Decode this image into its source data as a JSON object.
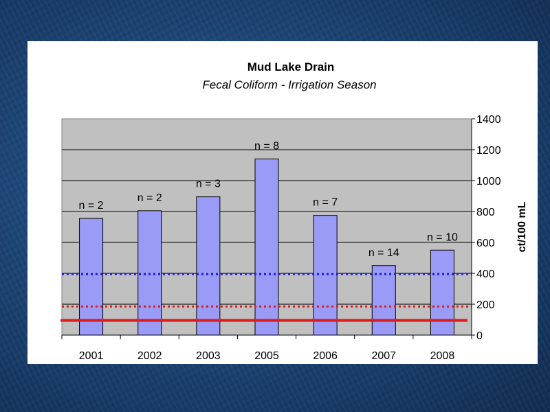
{
  "chart_data": {
    "type": "bar",
    "title": "Mud Lake Drain",
    "subtitle": "Fecal Coliform - Irrigation Season",
    "categories": [
      "2001",
      "2002",
      "2003",
      "2005",
      "2006",
      "2007",
      "2008"
    ],
    "values": [
      755,
      805,
      895,
      1140,
      775,
      450,
      550
    ],
    "sample_labels": [
      "n = 2",
      "n = 2",
      "n = 3",
      "n = 8",
      "n = 7",
      "n = 14",
      "n = 10"
    ],
    "ylabel": "ct/100 mL",
    "xlabel": "",
    "ylim": [
      0,
      1400
    ],
    "yticks": [
      "0",
      "200",
      "400",
      "600",
      "800",
      "1000",
      "1200",
      "1400"
    ],
    "grid": true,
    "y_axis_side": "right",
    "reference_lines": [
      {
        "value": 395,
        "style": "dotted",
        "color": "#1a1ad6"
      },
      {
        "value": 185,
        "style": "dotted",
        "color": "#e01b1b"
      },
      {
        "value": 95,
        "style": "solid",
        "color": "#e01b1b"
      }
    ],
    "colors": {
      "bar_fill": "#9a9af7",
      "bar_stroke": "#000000",
      "plot_background": "#c0c0c0"
    }
  }
}
